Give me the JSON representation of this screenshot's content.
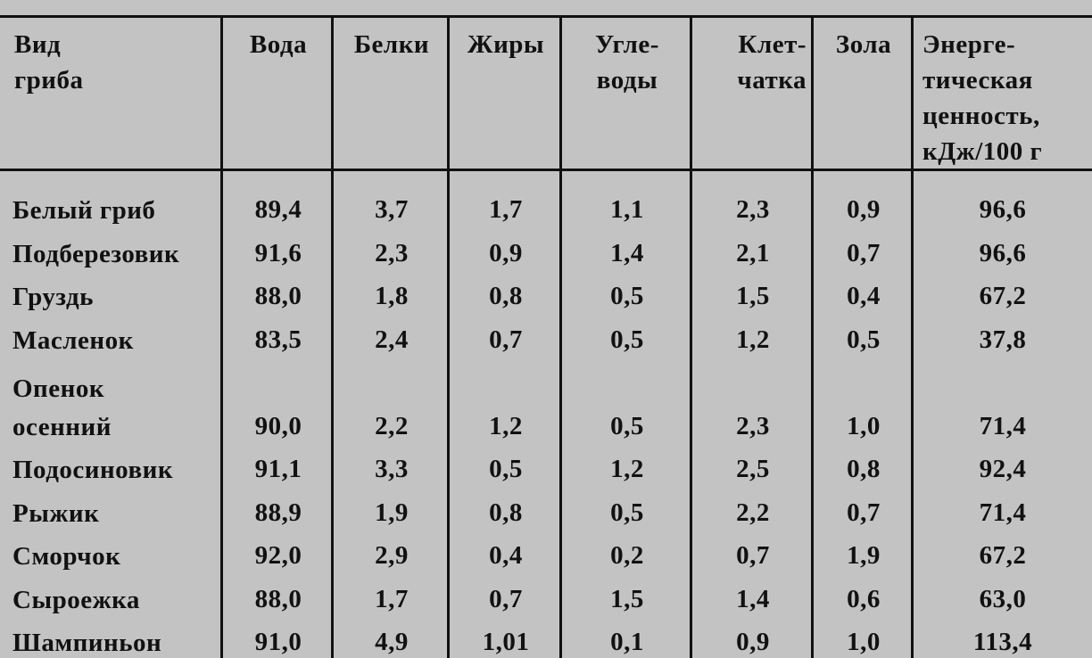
{
  "table": {
    "headers": [
      "Вид\nгриба",
      "Вода",
      "Белки",
      "Жиры",
      "Угле-\nводы",
      "Клет-\nчатка",
      "Зола",
      "Энерге-\nтическая\nценность,\nкДж/100 г"
    ],
    "rows": [
      [
        "Белый гриб",
        "89,4",
        "3,7",
        "1,7",
        "1,1",
        "2,3",
        "0,9",
        "96,6"
      ],
      [
        "Подберезовик",
        "91,6",
        "2,3",
        "0,9",
        "1,4",
        "2,1",
        "0,7",
        "96,6"
      ],
      [
        "Груздь",
        "88,0",
        "1,8",
        "0,8",
        "0,5",
        "1,5",
        "0,4",
        "67,2"
      ],
      [
        "Масленок",
        "83,5",
        "2,4",
        "0,7",
        "0,5",
        "1,2",
        "0,5",
        "37,8"
      ],
      [
        "Опенок\nосенний",
        "90,0",
        "2,2",
        "1,2",
        "0,5",
        "2,3",
        "1,0",
        "71,4"
      ],
      [
        "Подосиновик",
        "91,1",
        "3,3",
        "0,5",
        "1,2",
        "2,5",
        "0,8",
        "92,4"
      ],
      [
        "Рыжик",
        "88,9",
        "1,9",
        "0,8",
        "0,5",
        "2,2",
        "0,7",
        "71,4"
      ],
      [
        "Сморчок",
        "92,0",
        "2,9",
        "0,4",
        "0,2",
        "0,7",
        "1,9",
        "67,2"
      ],
      [
        "Сыроежка",
        "88,0",
        "1,7",
        "0,7",
        "1,5",
        "1,4",
        "0,6",
        "63,0"
      ],
      [
        "Шампиньон",
        "91,0",
        "4,9",
        "1,01",
        "0,1",
        "0,9",
        "1,0",
        "113,4"
      ]
    ]
  }
}
